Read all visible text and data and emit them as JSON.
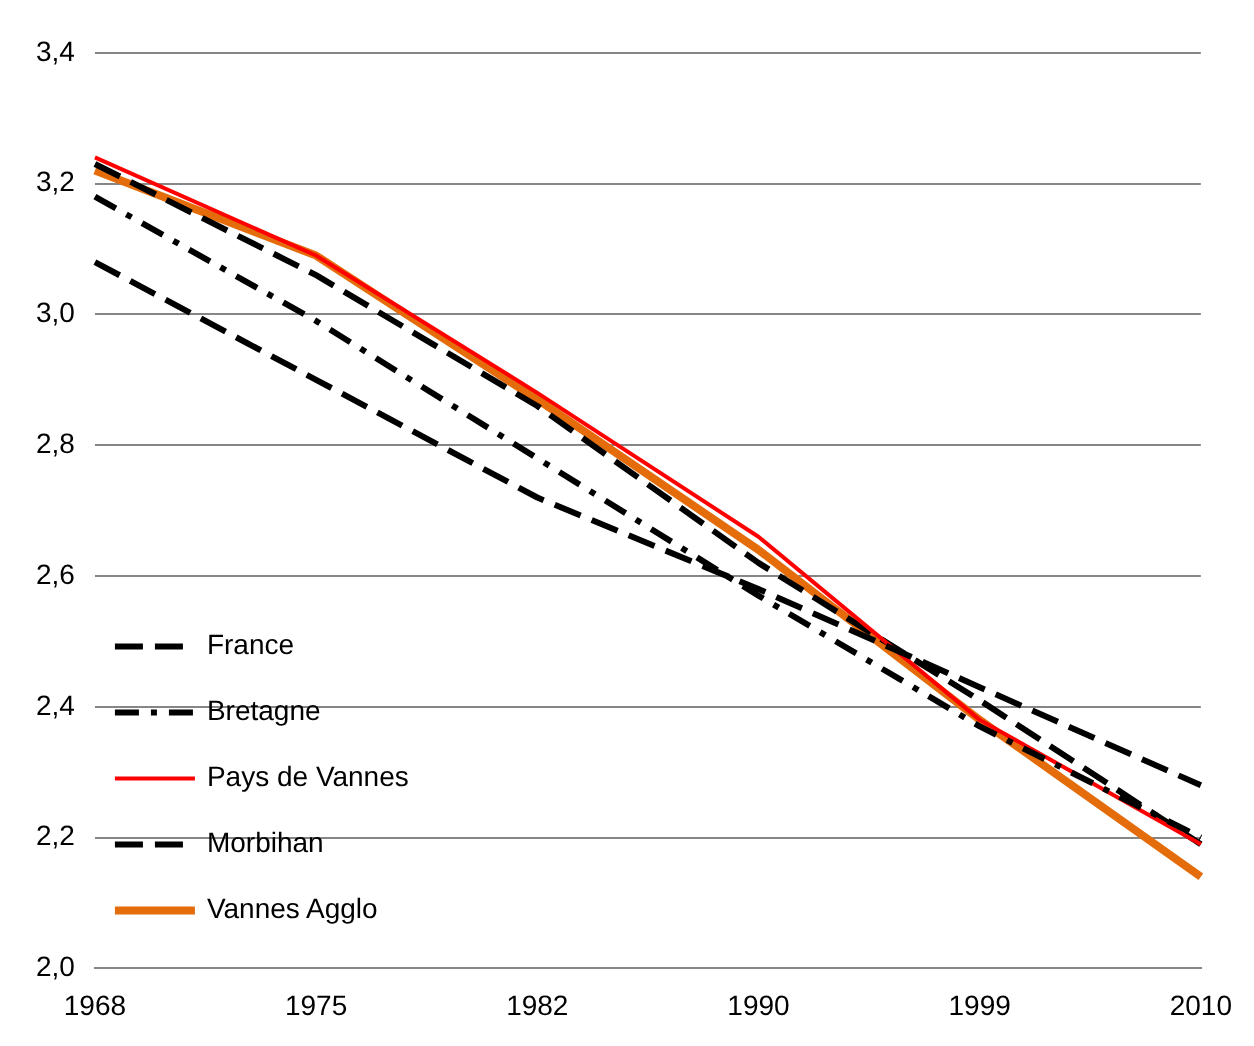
{
  "chart_data": {
    "type": "line",
    "categories": [
      "1968",
      "1975",
      "1982",
      "1990",
      "1999",
      "2010"
    ],
    "series": [
      {
        "name": "France",
        "color": "#000000",
        "line_style": "dashed",
        "values": [
          3.08,
          2.9,
          2.72,
          2.58,
          2.43,
          2.28
        ]
      },
      {
        "name": "Bretagne",
        "color": "#000000",
        "line_style": "dashdot",
        "values": [
          3.18,
          2.99,
          2.78,
          2.57,
          2.37,
          2.2
        ]
      },
      {
        "name": "Pays de Vannes",
        "color": "#ff0000",
        "line_style": "solid",
        "values": [
          3.24,
          3.09,
          2.88,
          2.66,
          2.38,
          2.19
        ]
      },
      {
        "name": "Morbihan",
        "color": "#000000",
        "line_style": "dashed",
        "values": [
          3.23,
          3.06,
          2.86,
          2.62,
          2.41,
          2.19
        ]
      },
      {
        "name": "Vannes Agglo",
        "color": "#e46c0a",
        "line_style": "solid",
        "values": [
          3.22,
          3.09,
          2.87,
          2.64,
          2.38,
          2.14
        ]
      }
    ],
    "ylim": [
      2.0,
      3.4
    ],
    "yticks": [
      {
        "value": 2.0,
        "label": "2,0"
      },
      {
        "value": 2.2,
        "label": "2,2"
      },
      {
        "value": 2.4,
        "label": "2,4"
      },
      {
        "value": 2.6,
        "label": "2,6"
      },
      {
        "value": 2.8,
        "label": "2,8"
      },
      {
        "value": 3.0,
        "label": "3,0"
      },
      {
        "value": 3.2,
        "label": "3,2"
      },
      {
        "value": 3.4,
        "label": "3,4"
      }
    ],
    "grid": "y",
    "legend": "bottom left",
    "marker": "none"
  }
}
